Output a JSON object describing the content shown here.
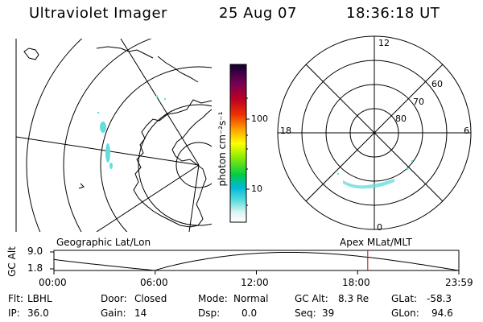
{
  "header": {
    "instrument": "Ultraviolet Imager",
    "date": "25 Aug 07",
    "time": "18:36:18 UT"
  },
  "panels": {
    "left_label": "Geographic Lat/Lon",
    "right_label": "Apex MLat/MLT"
  },
  "polar_plot": {
    "mlt_labels": {
      "top": "12",
      "left": "18",
      "right": "6",
      "bottom": "0"
    },
    "lat_labels": [
      "60",
      "70",
      "80"
    ]
  },
  "colorbar": {
    "unit_text": "photon cm⁻²s⁻¹",
    "ticks": [
      "100",
      "10"
    ]
  },
  "altitude_strip": {
    "ylabel": "GC Alt",
    "ymax": "9.0",
    "ymin": "1.8",
    "xticks": [
      "00:00",
      "06:00",
      "12:00",
      "18:00",
      "23:59"
    ],
    "current_time_fraction": 0.775
  },
  "status": {
    "row1": [
      {
        "key": "Flt:",
        "value": "LBHL"
      },
      {
        "key": "Door:",
        "value": "Closed"
      },
      {
        "key": "Mode:",
        "value": "Normal"
      },
      {
        "key": "GC Alt:",
        "value": "8.3 Re"
      },
      {
        "key": "GLat:",
        "value": "-58.3"
      }
    ],
    "row2": [
      {
        "key": "IP:",
        "value": "36.0"
      },
      {
        "key": "Gain:",
        "value": "14"
      },
      {
        "key": "Dsp:",
        "value": "0.0"
      },
      {
        "key": "Seq:",
        "value": "39"
      },
      {
        "key": "GLon:",
        "value": "94.6"
      }
    ]
  },
  "colors": {
    "accent": "#cc0000",
    "aurora": "#66dddd"
  }
}
